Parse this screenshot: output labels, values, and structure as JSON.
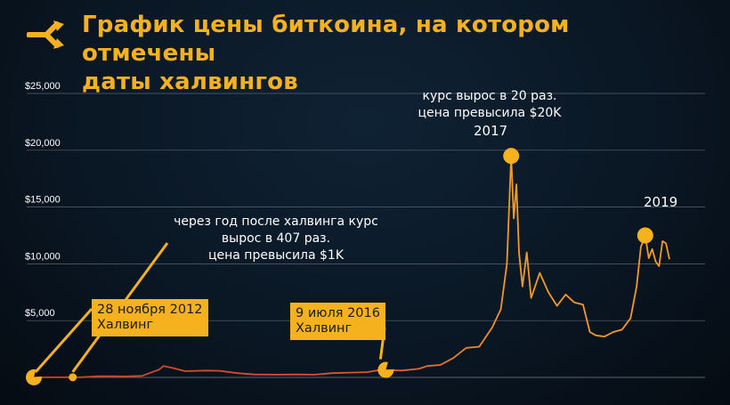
{
  "header": {
    "title_line1": "График цены биткоина, на котором отмечены",
    "title_line2": "даты халвингов",
    "logo_icon": "split-arrow-icon"
  },
  "colors": {
    "accent": "#f6b11e",
    "line_start": "#c8402a",
    "line_end": "#f09a2a",
    "grid": "#5b6470",
    "text": "#ffffff"
  },
  "annotations": {
    "halving1": {
      "line1": "28 ноября 2012",
      "line2": "Халвинг"
    },
    "halving2": {
      "line1": "9 июля 2016",
      "line2": "Халвинг"
    },
    "after_halving": {
      "line1": "через год после халвинга курс",
      "line2": "вырос в 407 раз.",
      "line3": "цена превысила $1K"
    },
    "peak2017": {
      "line1": "курс вырос в 20 раз.",
      "line2": "цена превысила $20K",
      "year": "2017"
    },
    "peak2019": {
      "year": "2019"
    }
  },
  "chart_data": {
    "type": "line",
    "title": "График цены биткоина, на котором отмечены даты халвингов",
    "xlabel": "",
    "ylabel": "",
    "ylim": [
      0,
      25000
    ],
    "yticks": [
      5000,
      10000,
      15000,
      20000,
      25000
    ],
    "ytick_labels": [
      "$5,000",
      "$10,000",
      "$15,000",
      "$20,000",
      "$25,000"
    ],
    "grid": true,
    "series": [
      {
        "values": [
          [
            2012.45,
            5
          ],
          [
            2012.55,
            10
          ],
          [
            2012.65,
            12
          ],
          [
            2012.75,
            11
          ],
          [
            2012.85,
            12
          ],
          [
            2013.0,
            13
          ],
          [
            2013.2,
            100
          ],
          [
            2013.35,
            110
          ],
          [
            2013.5,
            90
          ],
          [
            2013.7,
            130
          ],
          [
            2013.9,
            700
          ],
          [
            2013.95,
            1000
          ],
          [
            2014.05,
            850
          ],
          [
            2014.2,
            550
          ],
          [
            2014.45,
            600
          ],
          [
            2014.6,
            580
          ],
          [
            2014.8,
            380
          ],
          [
            2015.0,
            260
          ],
          [
            2015.25,
            240
          ],
          [
            2015.5,
            260
          ],
          [
            2015.7,
            240
          ],
          [
            2015.9,
            380
          ],
          [
            2016.1,
            420
          ],
          [
            2016.3,
            460
          ],
          [
            2016.45,
            650
          ],
          [
            2016.52,
            660
          ],
          [
            2016.7,
            600
          ],
          [
            2016.9,
            750
          ],
          [
            2017.0,
            1000
          ],
          [
            2017.15,
            1100
          ],
          [
            2017.3,
            1700
          ],
          [
            2017.45,
            2600
          ],
          [
            2017.6,
            2700
          ],
          [
            2017.75,
            4400
          ],
          [
            2017.85,
            6000
          ],
          [
            2017.92,
            10000
          ],
          [
            2017.97,
            19500
          ],
          [
            2018.0,
            14000
          ],
          [
            2018.03,
            17000
          ],
          [
            2018.06,
            11000
          ],
          [
            2018.1,
            8000
          ],
          [
            2018.15,
            11000
          ],
          [
            2018.2,
            7000
          ],
          [
            2018.3,
            9200
          ],
          [
            2018.4,
            7500
          ],
          [
            2018.5,
            6300
          ],
          [
            2018.6,
            7300
          ],
          [
            2018.7,
            6600
          ],
          [
            2018.8,
            6400
          ],
          [
            2018.88,
            4000
          ],
          [
            2018.95,
            3700
          ],
          [
            2019.05,
            3600
          ],
          [
            2019.15,
            4000
          ],
          [
            2019.25,
            4200
          ],
          [
            2019.35,
            5200
          ],
          [
            2019.42,
            8000
          ],
          [
            2019.47,
            11500
          ],
          [
            2019.52,
            12500
          ],
          [
            2019.56,
            10500
          ],
          [
            2019.6,
            11300
          ],
          [
            2019.64,
            10200
          ],
          [
            2019.68,
            9800
          ],
          [
            2019.72,
            12000
          ],
          [
            2019.76,
            11800
          ],
          [
            2019.8,
            10400
          ]
        ]
      }
    ],
    "markers": [
      {
        "x": 2012.45,
        "y": 5,
        "size": "large",
        "style": "pacman"
      },
      {
        "x": 2012.9,
        "y": 12,
        "size": "small",
        "style": "dot"
      },
      {
        "x": 2016.52,
        "y": 660,
        "size": "large",
        "style": "pacman"
      },
      {
        "x": 2017.97,
        "y": 19500,
        "size": "large",
        "style": "dot"
      },
      {
        "x": 2019.52,
        "y": 12500,
        "size": "large",
        "style": "dot"
      }
    ]
  }
}
